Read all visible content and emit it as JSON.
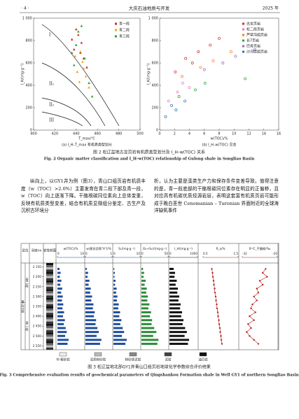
{
  "header": {
    "page": "· 4 ·",
    "journal": "大庆石油地质与开发",
    "year": "2025 年"
  },
  "figure2": {
    "panels": [
      {
        "type": "scatter",
        "caption": "(a) I_H–T_max 有机质类型划分",
        "xlabel": "T_max/℃",
        "ylabel": "I_H/(mg·g⁻¹)",
        "xlim": [
          400,
          500
        ],
        "xticks": [
          400,
          420,
          440,
          460,
          480,
          500
        ],
        "ylim": [
          0,
          1000
        ],
        "yticks": [
          0,
          200,
          400,
          600,
          800,
          {
            "value": 1000,
            "label": "1 000"
          }
        ],
        "regions": [
          "I",
          "II₁",
          "II₂",
          "III"
        ],
        "series": [
          {
            "name": "青一段",
            "color": "#d62728",
            "x": [
              438,
              442,
              445,
              447,
              440,
              450,
              444,
              436
            ],
            "values": [
              720,
              850,
              780,
              640,
              900,
              560,
              690,
              810
            ]
          },
          {
            "name": "青二段",
            "color": "#f0a020",
            "x": [
              441,
              446,
              443,
              449,
              452,
              439,
              447,
              444
            ],
            "values": [
              520,
              610,
              430,
              480,
              380,
              660,
              550,
              700
            ]
          },
          {
            "name": "青三段",
            "color": "#2ca02c",
            "x": [
              440,
              445,
              448,
              438,
              452,
              442,
              455,
              436
            ],
            "values": [
              760,
              930,
              640,
              580,
              420,
              880,
              300,
              690
            ]
          }
        ]
      },
      {
        "type": "scatter",
        "caption": "(b) I_H–w(TOC) 交会",
        "xlabel": "w(TOC)/%",
        "ylabel": "I_H/(mg·g⁻¹)",
        "xlim": [
          0,
          16
        ],
        "xticks": [
          0,
          2,
          4,
          6,
          8,
          10,
          12,
          14,
          16
        ],
        "ylim": [
          0,
          1000
        ],
        "yticks": [
          0,
          200,
          400,
          600,
          800,
          {
            "value": 1000,
            "label": "1 000"
          }
        ],
        "series": [
          {
            "name": "古龙页岩",
            "color": "#d62728",
            "x": [
              2.1,
              3.5,
              5.2,
              6.8,
              8.0,
              4.4
            ],
            "values": [
              520,
              640,
              700,
              760,
              820,
              600
            ]
          },
          {
            "name": "松二段页岩",
            "color": "#e377c2",
            "x": [
              1.2,
              2.4,
              3.1,
              4.0
            ],
            "values": [
              260,
              340,
              420,
              380
            ]
          },
          {
            "name": "芦草沟组页岩",
            "color": "#ff7f0e",
            "x": [
              3.0,
              5.5,
              7.2,
              9.6
            ],
            "values": [
              480,
              560,
              620,
              700
            ]
          },
          {
            "name": "长7页岩",
            "color": "#2ca02c",
            "x": [
              2.6,
              4.8,
              6.1,
              11.5
            ],
            "values": [
              300,
              360,
              420,
              460
            ]
          },
          {
            "name": "巴肯页岩",
            "color": "#9467bd",
            "x": [
              6.0,
              8.5,
              10.2,
              12.8
            ],
            "values": [
              540,
              600,
              660,
              720
            ]
          },
          {
            "name": "沙河街组页岩",
            "color": "#1f77b4",
            "x": [
              0.8,
              1.6,
              2.2,
              3.4
            ],
            "values": [
              120,
              220,
              180,
              260
            ]
          }
        ]
      }
    ],
    "caption_cn": "图 2 松辽盆地古龙页岩有机质类型划分及 I_H–w(TOC) 关系",
    "caption_en": "Fig. 2 Organic matter classification and I_H–w(TOC) relationship of Gulong shale in Songliao Basin"
  },
  "body": {
    "left": "纵向上，以GY1井为例（图3），青山口组页岩有机质丰度（w（TOC）>2.0%）主要发育在青二段下部及青一段，w（TOC）向上逐渐下降。干酪根碳同位素向上总体变重，反映有机质类型变差，结合有机质显微组分鉴定、古生产及沉积古环境分",
    "right": "析，认为主要是藻类生产力和保存条件变差导致。值得注意的是，青一段底部的干酪根碳同位素存在明显的正偏移，且对应高有机碳优质烃源岩层，表明这套富有机质页岩可能形成于晚白垩世 Cenomanian – Turonian 界面附近的全球海洋缺氧事件"
  },
  "figure3": {
    "strat_header": "层位",
    "depth_header": "深度/m",
    "lith_header": "岩性剖面",
    "strata": [
      "青二段",
      "青一段"
    ],
    "formation": "青山口组",
    "ylim": [
      2130,
      2570
    ],
    "yticks": [
      {
        "value": 2150,
        "label": "2 150"
      },
      {
        "value": 2200,
        "label": "2 200"
      },
      {
        "value": 2250,
        "label": "2 250"
      },
      {
        "value": 2300,
        "label": "2 300"
      },
      {
        "value": 2350,
        "label": "2 350"
      },
      {
        "value": 2400,
        "label": "2 400"
      },
      {
        "value": 2450,
        "label": "2 450"
      },
      {
        "value": 2500,
        "label": "2 500"
      },
      {
        "value": 2550,
        "label": "2 550"
      }
    ],
    "depths": [
      2160,
      2180,
      2200,
      2220,
      2240,
      2260,
      2280,
      2300,
      2320,
      2340,
      2360,
      2380,
      2400,
      2420,
      2440,
      2460,
      2480,
      2500,
      2520,
      2540
    ],
    "tracks": [
      {
        "type": "bar",
        "header": "w(TOC)/%",
        "color": "#1f4e9c",
        "xlim": [
          0,
          10
        ],
        "xticks": [
          0,
          10
        ],
        "values": [
          0.8,
          1.2,
          0.9,
          1.5,
          1.1,
          1.8,
          1.4,
          2.0,
          1.7,
          2.2,
          1.9,
          2.5,
          2.1,
          2.8,
          2.4,
          3.1,
          3.5,
          2.9,
          4.2,
          3.8
        ]
      },
      {
        "type": "bar",
        "header": "w(氯仿沥青\"A\")/%",
        "color": "#1f4e9c",
        "xlim": [
          0,
          1
        ],
        "xticks": [
          0,
          1
        ],
        "values": [
          0.05,
          0.1,
          0.08,
          0.15,
          0.12,
          0.2,
          0.18,
          0.25,
          0.22,
          0.3,
          0.28,
          0.35,
          0.32,
          0.4,
          0.38,
          0.45,
          0.5,
          0.42,
          0.6,
          0.55
        ]
      },
      {
        "type": "bar",
        "header": "S₁/(mg·g⁻¹)",
        "color": "#1f4e9c",
        "xlim": [
          0,
          10
        ],
        "xticks": [
          0,
          10
        ],
        "values": [
          0.3,
          0.5,
          0.4,
          0.8,
          0.6,
          1.2,
          1.0,
          1.5,
          1.3,
          2.0,
          1.8,
          2.5,
          2.2,
          3.0,
          2.6,
          3.5,
          4.0,
          3.2,
          5.0,
          4.5
        ]
      },
      {
        "type": "bar",
        "header": "(S₁+S₂)/(mg·g⁻¹)",
        "color": "#2e8b3a",
        "xlim": [
          0,
          50
        ],
        "xticks": [
          0,
          50
        ],
        "values": [
          3,
          5,
          4,
          8,
          6,
          10,
          9,
          12,
          11,
          15,
          13,
          18,
          16,
          20,
          19,
          24,
          28,
          22,
          32,
          30
        ]
      },
      {
        "type": "bar",
        "header": "I_H/(mg·g⁻¹)",
        "color": "#111111",
        "xlim": [
          0,
          1000
        ],
        "xticks": [
          0,
          1000
        ],
        "values": [
          150,
          200,
          180,
          260,
          220,
          300,
          280,
          350,
          320,
          400,
          380,
          450,
          420,
          500,
          470,
          560,
          620,
          540,
          700,
          660
        ]
      },
      {
        "type": "line",
        "header": "R_o/%",
        "color": "#b22222",
        "xlim": [
          0.5,
          1.5
        ],
        "xticks": [
          0.5,
          1.5
        ],
        "values": [
          0.75,
          0.77,
          0.78,
          0.8,
          0.81,
          0.83,
          0.84,
          0.86,
          0.87,
          0.89,
          0.9,
          0.92,
          0.93,
          0.95,
          0.96,
          0.98,
          0.99,
          1.01,
          1.02,
          1.04
        ]
      },
      {
        "type": "line",
        "header": "δ¹³C_干酪根/‰",
        "color": "#b22222",
        "xlim": [
          -32,
          -20
        ],
        "xticks": [
          -32,
          -20
        ],
        "values": [
          -24,
          -25,
          -23.5,
          -26,
          -25,
          -27,
          -26.5,
          -28,
          -27,
          -28.5,
          -29,
          -27.5,
          -29.5,
          -28,
          -30,
          -29,
          -30.5,
          -29.5,
          -28,
          -26.5
        ]
      }
    ],
    "lithology_legend": [
      "中-粗砂岩",
      "泥质粉砂岩",
      "粉砂质泥岩",
      "泥岩",
      "油页岩"
    ],
    "caption_cn": "图 3 松辽盆地北部GY1井青山口组页岩地球化学参数综合评价结果",
    "caption_en": "Fig. 3 Comprehensive evaluation results of geochemical parameters of Qingshankou Formation shale in Well GY1 of northern Songliao Basin"
  }
}
